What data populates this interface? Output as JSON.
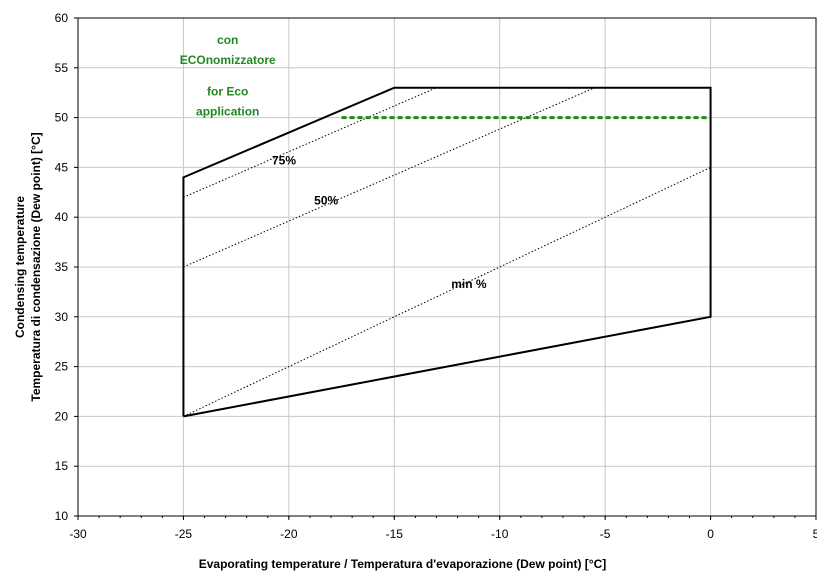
{
  "chart_data": {
    "type": "line",
    "xlabel": "Evaporating temperature / Temperatura d'evaporazione (Dew point) [°C]",
    "ylabel_line1": "Condensing temperature",
    "ylabel_line2": "Temperatura di condensazione (Dew point)  [°C]",
    "xlim": [
      -30,
      5
    ],
    "ylim": [
      10,
      60
    ],
    "x_ticks": [
      -30,
      -25,
      -20,
      -15,
      -10,
      -5,
      0,
      5
    ],
    "y_ticks": [
      10,
      15,
      20,
      25,
      30,
      35,
      40,
      45,
      50,
      55,
      60
    ],
    "grid": true,
    "envelope": {
      "x": [
        -25,
        -25,
        -15,
        0,
        0,
        -25
      ],
      "y": [
        20,
        44,
        53,
        53,
        30,
        20
      ]
    },
    "series": [
      {
        "name": "75%",
        "style": "dotted",
        "x": [
          -25,
          -13
        ],
        "y": [
          42,
          53
        ]
      },
      {
        "name": "50%",
        "style": "dotted",
        "x": [
          -25,
          -5.5
        ],
        "y": [
          35,
          53
        ]
      },
      {
        "name": "min %",
        "style": "dotted",
        "x": [
          -25,
          0
        ],
        "y": [
          20,
          45
        ]
      },
      {
        "name": "",
        "style": "dashed",
        "color": "#1f8a1f",
        "x": [
          -17.5,
          0
        ],
        "y": [
          50,
          50
        ]
      }
    ],
    "annotations": {
      "eco_line1": "con",
      "eco_line2": "ECOnomizzatore",
      "eco_line3": "for Eco",
      "eco_line4": "application",
      "label_75": "75%",
      "label_50": "50%",
      "label_min": "min %"
    },
    "colors": {
      "envelope": "#000000",
      "eco": "#1f8a1f",
      "grid": "#c8c8c8"
    }
  }
}
